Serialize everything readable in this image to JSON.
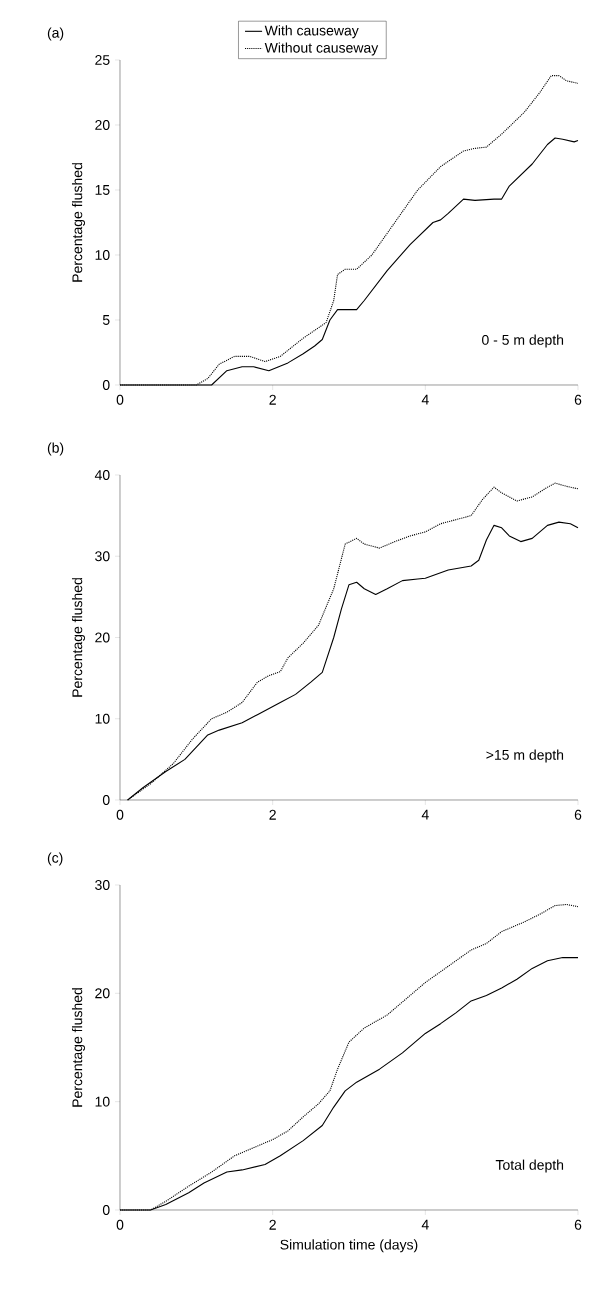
{
  "chart_data": [
    {
      "type": "line",
      "title": "(a)",
      "ylabel": "Percentage flushed",
      "annotations": [
        "0 - 5 m depth"
      ],
      "xlim": [
        0,
        6
      ],
      "xticks": [
        0,
        2,
        4,
        6
      ],
      "ylim": [
        0,
        25
      ],
      "yticks": [
        0,
        5,
        10,
        15,
        20,
        25
      ],
      "legend": "top",
      "marker": "none",
      "series": [
        {
          "name": "With causeway",
          "color": "#000000",
          "line_style": "solid",
          "x": [
            0,
            1.2,
            1.4,
            1.6,
            1.75,
            1.95,
            2.2,
            2.4,
            2.55,
            2.65,
            2.75,
            2.85,
            3.1,
            3.2,
            3.5,
            3.8,
            4.1,
            4.2,
            4.3,
            4.5,
            4.65,
            4.9,
            5.0,
            5.1,
            5.4,
            5.6,
            5.7,
            5.8,
            5.95,
            6
          ],
          "values": [
            0,
            0,
            1.1,
            1.4,
            1.4,
            1.1,
            1.7,
            2.4,
            3,
            3.5,
            5,
            5.8,
            5.8,
            6.5,
            8.8,
            10.8,
            12.5,
            12.7,
            13.2,
            14.3,
            14.2,
            14.3,
            14.3,
            15.3,
            17,
            18.5,
            19,
            18.9,
            18.7,
            18.8
          ]
        },
        {
          "name": "Without causeway",
          "color": "#000000",
          "line_style": "dotted",
          "x": [
            0,
            1,
            1.15,
            1.3,
            1.5,
            1.7,
            1.9,
            2.1,
            2.4,
            2.7,
            2.8,
            2.85,
            2.95,
            3.1,
            3.3,
            3.6,
            3.9,
            4.2,
            4.5,
            4.65,
            4.8,
            5.0,
            5.3,
            5.5,
            5.65,
            5.75,
            5.85,
            6
          ],
          "values": [
            0,
            0,
            0.5,
            1.6,
            2.2,
            2.2,
            1.8,
            2.2,
            3.6,
            4.8,
            6.5,
            8.5,
            8.9,
            8.9,
            10,
            12.5,
            15,
            16.8,
            18,
            18.2,
            18.3,
            19.3,
            21,
            22.5,
            23.8,
            23.8,
            23.4,
            23.2
          ]
        }
      ]
    },
    {
      "type": "line",
      "title": "(b)",
      "ylabel": "Percentage flushed",
      "annotations": [
        ">15 m depth"
      ],
      "xlim": [
        0,
        6
      ],
      "xticks": [
        0,
        2,
        4,
        6
      ],
      "ylim": [
        0,
        40
      ],
      "yticks": [
        0,
        10,
        20,
        30,
        40
      ],
      "marker": "none",
      "series": [
        {
          "color": "#000000",
          "line_style": "solid",
          "x": [
            0.1,
            0.3,
            0.6,
            0.85,
            1.0,
            1.15,
            1.3,
            1.6,
            1.8,
            2.1,
            2.3,
            2.5,
            2.65,
            2.8,
            2.9,
            3.0,
            3.1,
            3.2,
            3.35,
            3.5,
            3.7,
            3.9,
            4.0,
            4.3,
            4.6,
            4.7,
            4.8,
            4.9,
            5.0,
            5.1,
            5.25,
            5.4,
            5.6,
            5.75,
            5.9,
            6
          ],
          "values": [
            0,
            1.5,
            3.5,
            5,
            6.5,
            8,
            8.6,
            9.5,
            10.5,
            12,
            13,
            14.5,
            15.7,
            20,
            23.5,
            26.5,
            26.8,
            26,
            25.3,
            26,
            27,
            27.2,
            27.3,
            28.3,
            28.8,
            29.5,
            32,
            33.8,
            33.5,
            32.5,
            31.8,
            32.2,
            33.8,
            34.2,
            34,
            33.5
          ]
        },
        {
          "color": "#000000",
          "line_style": "dotted",
          "x": [
            0.1,
            0.4,
            0.7,
            0.95,
            1.2,
            1.4,
            1.6,
            1.8,
            1.95,
            2.1,
            2.2,
            2.4,
            2.6,
            2.8,
            2.95,
            3.1,
            3.2,
            3.4,
            3.6,
            3.8,
            4.0,
            4.2,
            4.4,
            4.6,
            4.75,
            4.9,
            5.0,
            5.2,
            5.4,
            5.6,
            5.7,
            5.85,
            6
          ],
          "values": [
            0,
            2,
            4.5,
            7.5,
            10,
            10.8,
            12,
            14.5,
            15.3,
            15.8,
            17.5,
            19.3,
            21.5,
            26,
            31.5,
            32.2,
            31.5,
            31,
            31.8,
            32.5,
            33,
            34,
            34.5,
            35,
            37,
            38.5,
            37.8,
            36.8,
            37.3,
            38.5,
            39,
            38.6,
            38.3
          ]
        }
      ]
    },
    {
      "type": "line",
      "title": "(c)",
      "xlabel": "Simulation time (days)",
      "ylabel": "Percentage flushed",
      "annotations": [
        "Total depth"
      ],
      "xlim": [
        0,
        6
      ],
      "xticks": [
        0,
        2,
        4,
        6
      ],
      "ylim": [
        0,
        30
      ],
      "yticks": [
        0,
        10,
        20,
        30
      ],
      "marker": "none",
      "series": [
        {
          "color": "#000000",
          "line_style": "solid",
          "x": [
            0,
            0.4,
            0.6,
            0.9,
            1.1,
            1.4,
            1.6,
            1.9,
            2.1,
            2.4,
            2.65,
            2.8,
            2.95,
            3.1,
            3.4,
            3.7,
            4.0,
            4.2,
            4.4,
            4.6,
            4.8,
            5.0,
            5.2,
            5.4,
            5.6,
            5.8,
            6
          ],
          "values": [
            0,
            0,
            0.5,
            1.6,
            2.5,
            3.5,
            3.7,
            4.2,
            5,
            6.4,
            7.8,
            9.5,
            11,
            11.8,
            13,
            14.5,
            16.3,
            17.2,
            18.2,
            19.3,
            19.8,
            20.5,
            21.3,
            22.3,
            23,
            23.3,
            23.3
          ]
        },
        {
          "color": "#000000",
          "line_style": "dotted",
          "x": [
            0,
            0.4,
            0.6,
            0.9,
            1.2,
            1.5,
            1.8,
            2.0,
            2.2,
            2.4,
            2.6,
            2.75,
            2.85,
            3.0,
            3.2,
            3.5,
            3.8,
            4.0,
            4.2,
            4.4,
            4.6,
            4.8,
            5.0,
            5.3,
            5.5,
            5.7,
            5.85,
            6
          ],
          "values": [
            0,
            0,
            0.8,
            2.2,
            3.5,
            5,
            5.9,
            6.5,
            7.3,
            8.6,
            9.8,
            11,
            13,
            15.5,
            16.8,
            18,
            19.8,
            21,
            22,
            23,
            24,
            24.6,
            25.7,
            26.6,
            27.3,
            28.1,
            28.2,
            28
          ]
        }
      ]
    }
  ]
}
